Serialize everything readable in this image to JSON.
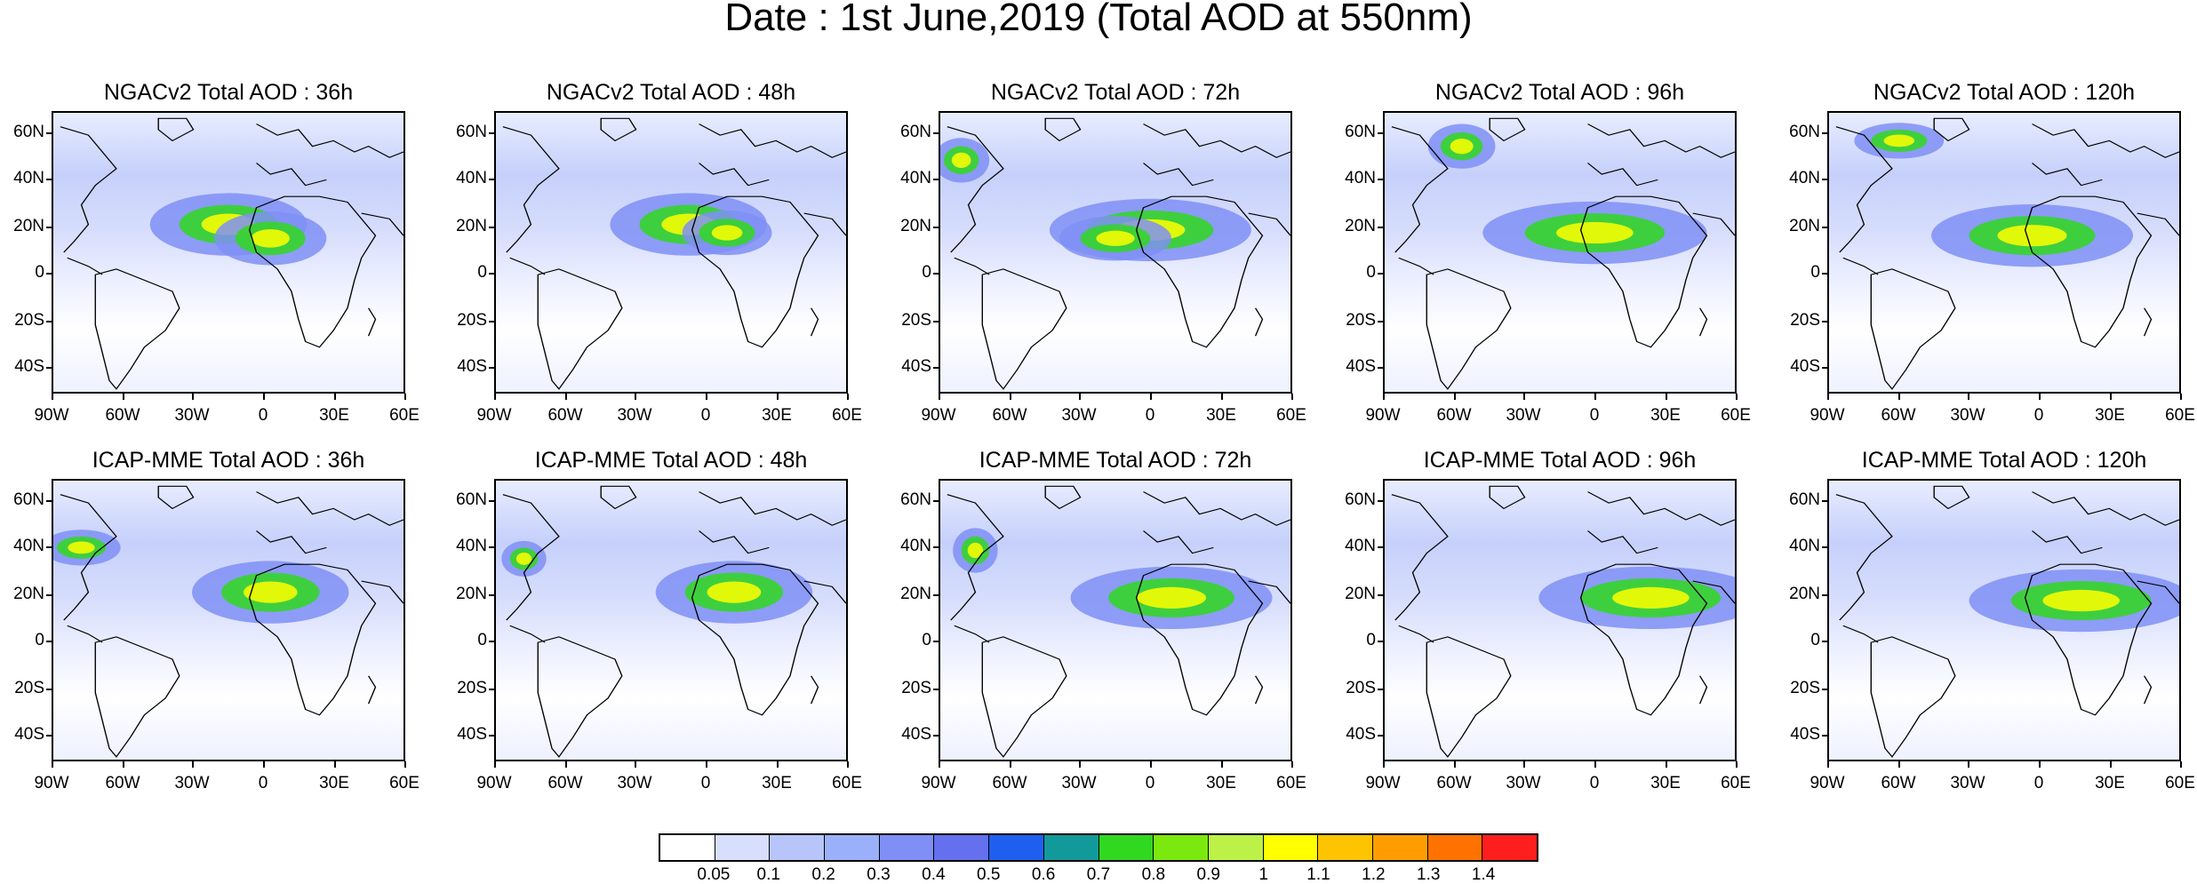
{
  "title": "Date : 1st June,2019 (Total AOD at 550nm)",
  "lat_labels": [
    "60N",
    "40N",
    "20N",
    "0",
    "20S",
    "40S"
  ],
  "lon_labels": [
    "90W",
    "60W",
    "30W",
    "0",
    "30E",
    "60E"
  ],
  "panels": [
    {
      "title": "NGACv2 Total AOD : 36h"
    },
    {
      "title": "NGACv2 Total AOD : 48h"
    },
    {
      "title": "NGACv2 Total AOD : 72h"
    },
    {
      "title": "NGACv2 Total AOD : 96h"
    },
    {
      "title": "NGACv2 Total AOD : 120h"
    },
    {
      "title": "ICAP-MME Total AOD : 36h"
    },
    {
      "title": "ICAP-MME Total AOD : 48h"
    },
    {
      "title": "ICAP-MME Total AOD : 72h"
    },
    {
      "title": "ICAP-MME Total AOD : 96h"
    },
    {
      "title": "ICAP-MME Total AOD : 120h"
    }
  ],
  "colorbar": {
    "labels": [
      "0.05",
      "0.1",
      "0.2",
      "0.3",
      "0.4",
      "0.5",
      "0.6",
      "0.7",
      "0.8",
      "0.9",
      "1",
      "1.1",
      "1.2",
      "1.3",
      "1.4"
    ],
    "colors": [
      "#ffffff",
      "#d7dffd",
      "#b8c5fb",
      "#9bb0fb",
      "#7f8ff5",
      "#6470ee",
      "#1f5ff0",
      "#129a9a",
      "#30d81f",
      "#7be80e",
      "#bcf247",
      "#ffff00",
      "#ffc400",
      "#ff9d00",
      "#ff7200",
      "#ff1e1e"
    ]
  }
}
